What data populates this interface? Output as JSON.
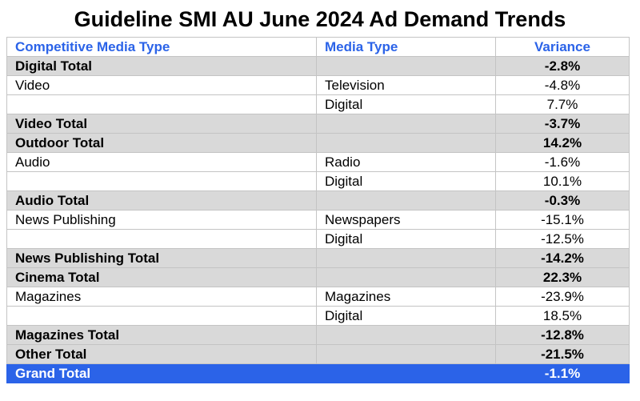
{
  "title": "Guideline SMI AU June 2024 Ad Demand Trends",
  "table": {
    "headers": [
      "Competitive Media Type",
      "Media Type",
      "Variance"
    ],
    "rows": [
      {
        "kind": "total",
        "cells": [
          "Digital Total",
          "",
          "-2.8%"
        ]
      },
      {
        "kind": "detail",
        "cells": [
          "Video",
          "Television",
          "-4.8%"
        ]
      },
      {
        "kind": "detail",
        "cells": [
          "",
          "Digital",
          "7.7%"
        ]
      },
      {
        "kind": "total",
        "cells": [
          "Video Total",
          "",
          "-3.7%"
        ]
      },
      {
        "kind": "total",
        "cells": [
          "Outdoor Total",
          "",
          "14.2%"
        ]
      },
      {
        "kind": "detail",
        "cells": [
          "Audio",
          "Radio",
          "-1.6%"
        ]
      },
      {
        "kind": "detail",
        "cells": [
          "",
          "Digital",
          "10.1%"
        ]
      },
      {
        "kind": "total",
        "cells": [
          "Audio Total",
          "",
          "-0.3%"
        ]
      },
      {
        "kind": "detail",
        "cells": [
          "News Publishing",
          "Newspapers",
          "-15.1%"
        ]
      },
      {
        "kind": "detail",
        "cells": [
          "",
          "Digital",
          "-12.5%"
        ]
      },
      {
        "kind": "total",
        "cells": [
          "News Publishing Total",
          "",
          "-14.2%"
        ]
      },
      {
        "kind": "total",
        "cells": [
          "Cinema Total",
          "",
          "22.3%"
        ]
      },
      {
        "kind": "detail",
        "cells": [
          "Magazines",
          "Magazines",
          "-23.9%"
        ]
      },
      {
        "kind": "detail",
        "cells": [
          "",
          "Digital",
          "18.5%"
        ]
      },
      {
        "kind": "total",
        "cells": [
          "Magazines Total",
          "",
          "-12.8%"
        ]
      },
      {
        "kind": "total",
        "cells": [
          "Other Total",
          "",
          "-21.5%"
        ]
      },
      {
        "kind": "grand",
        "cells": [
          "Grand Total",
          "",
          "-1.1%"
        ]
      }
    ]
  },
  "colors": {
    "header_text": "#2b63e8",
    "total_row_bg": "#d9d9d9",
    "grand_total_bg": "#2b63e8",
    "grand_total_text": "#ffffff"
  }
}
